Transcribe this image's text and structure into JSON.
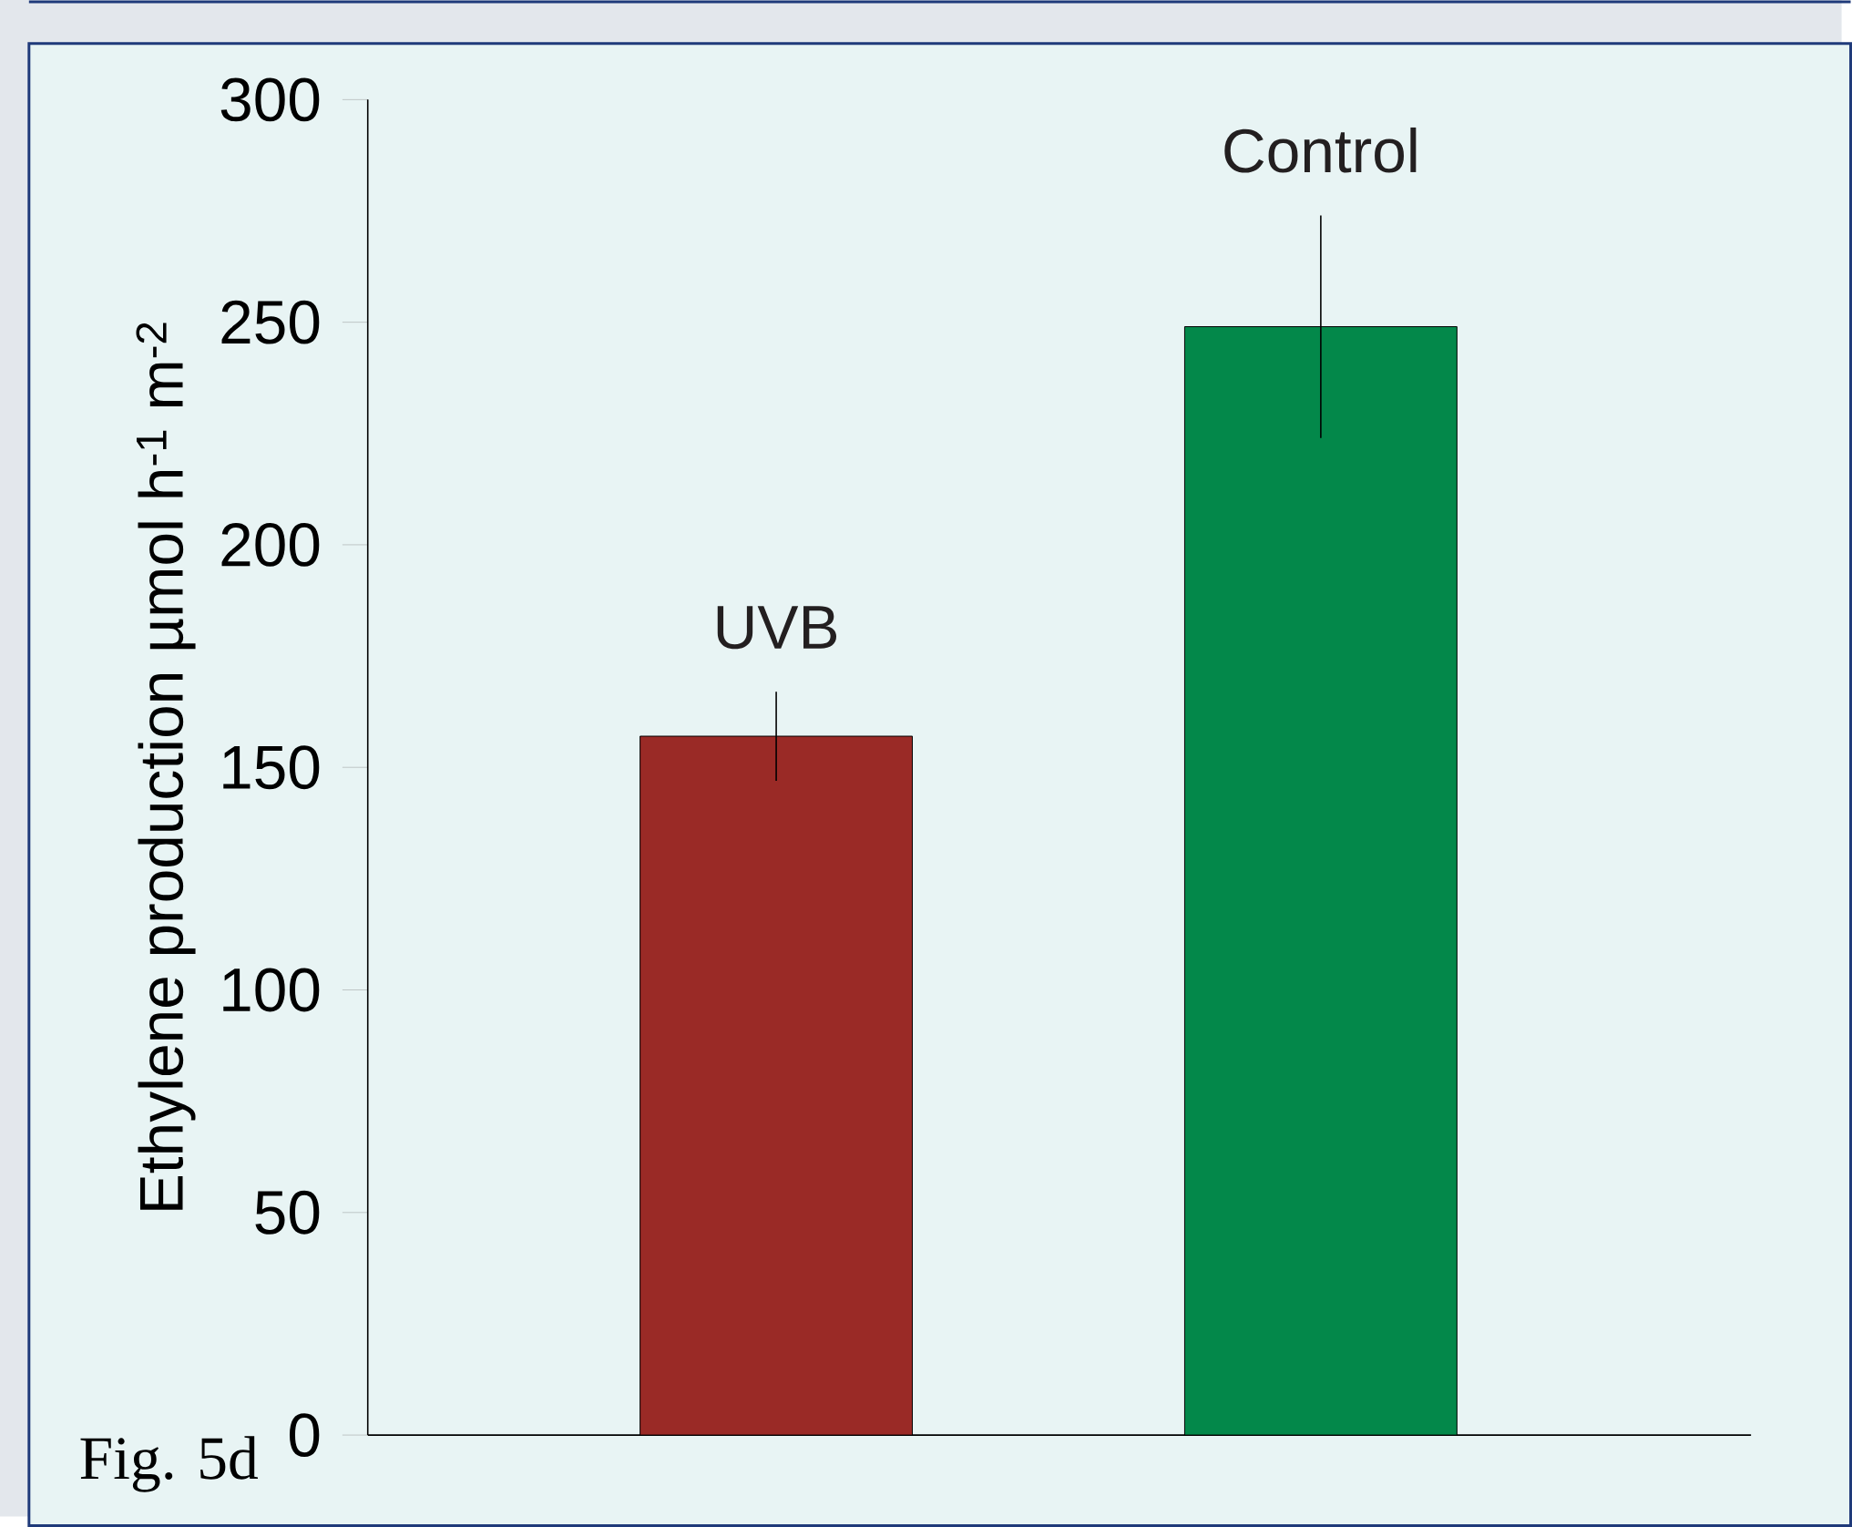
{
  "chart_data": {
    "type": "bar",
    "ylabel": "Ethylene production µmol h$^{-1}$ m$^{-2}$",
    "categories": [
      "UVB",
      "Control"
    ],
    "values": [
      157,
      249
    ],
    "errors": [
      10,
      25
    ],
    "colors": [
      "#9a2a26",
      "#03884a"
    ],
    "ylim": [
      0,
      300
    ],
    "yticks": [
      0,
      50,
      100,
      150,
      200,
      250,
      300
    ],
    "annotations": [
      "Fig. 5d"
    ]
  }
}
